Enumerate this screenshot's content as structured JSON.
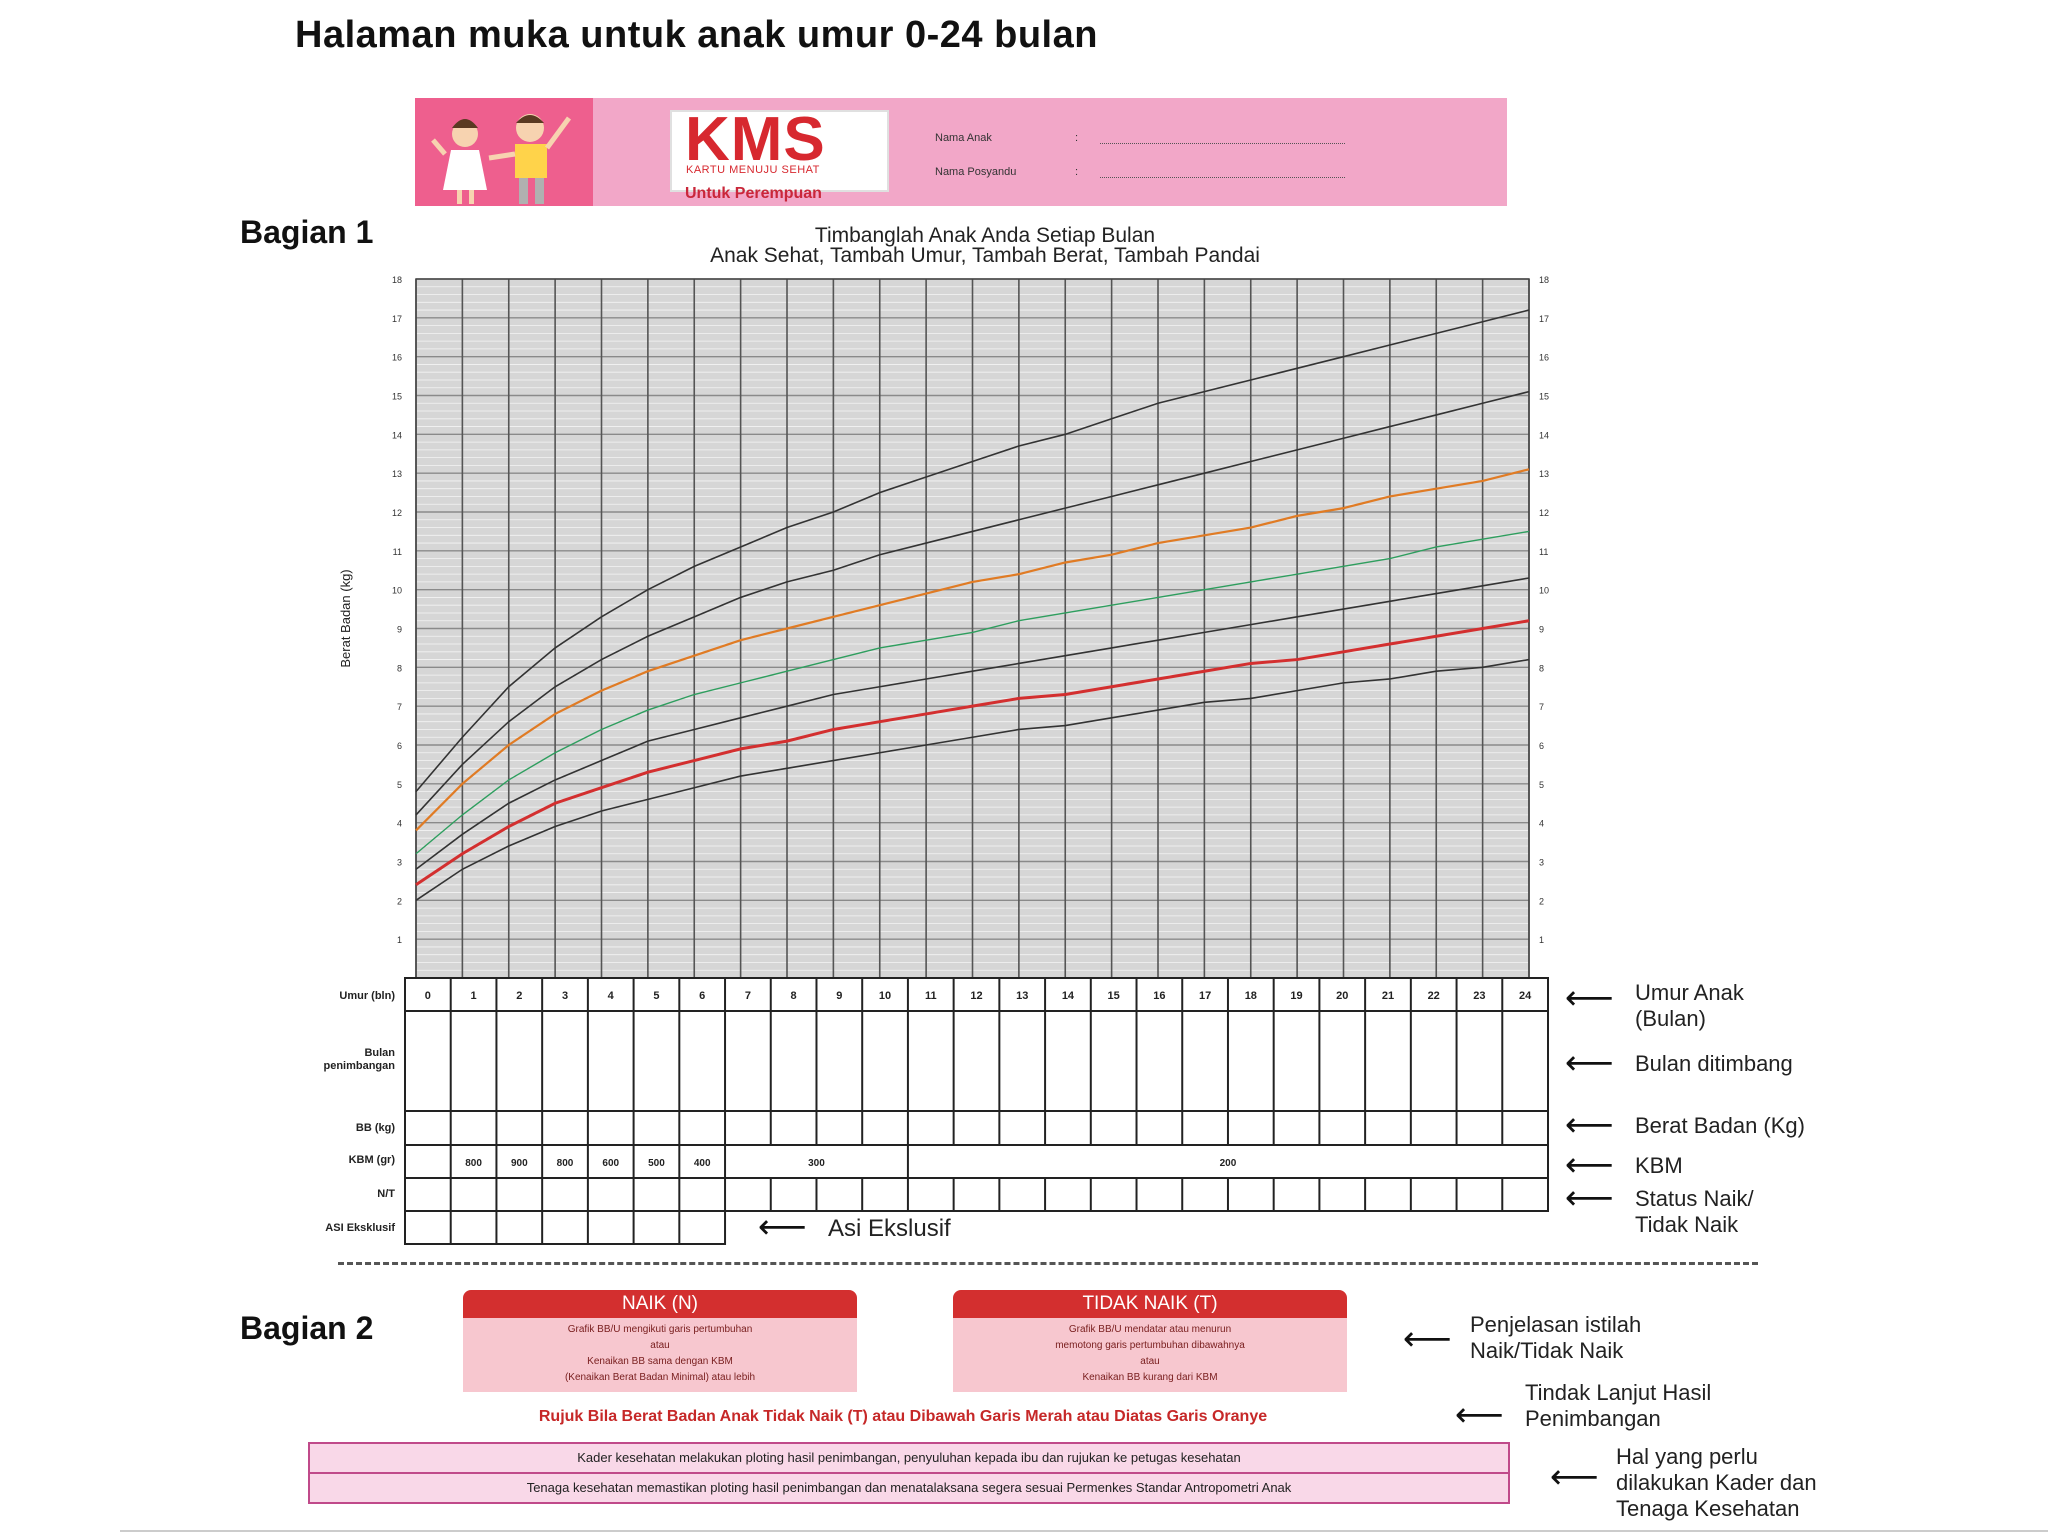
{
  "page_title": "Halaman muka untuk anak umur 0-24 bulan",
  "header": {
    "logo": "KMS",
    "logo_sub": "KARTU MENUJU SEHAT",
    "for_label": "Untuk Perempuan",
    "fields": [
      {
        "label": "Nama Anak",
        "sep": ":"
      },
      {
        "label": "Nama Posyandu",
        "sep": ":"
      }
    ]
  },
  "section1": {
    "label": "Bagian 1",
    "subtitle_line1": "Timbanglah Anak Anda Setiap Bulan",
    "subtitle_line2": "Anak Sehat, Tambah Umur, Tambah Berat, Tambah Pandai"
  },
  "chart_data": {
    "type": "line",
    "ylabel": "Berat Badan (kg)",
    "ylim": [
      0,
      18
    ],
    "xlim": [
      0,
      24
    ],
    "y_ticks": [
      "1",
      "2",
      "3",
      "4",
      "5",
      "6",
      "7",
      "8",
      "9",
      "10",
      "11",
      "12",
      "13",
      "14",
      "15",
      "16",
      "17",
      "18"
    ],
    "grid": true,
    "x": [
      0,
      1,
      2,
      3,
      4,
      5,
      6,
      7,
      8,
      9,
      10,
      11,
      12,
      13,
      14,
      15,
      16,
      17,
      18,
      19,
      20,
      21,
      22,
      23,
      24
    ],
    "series": [
      {
        "color": "#333333",
        "values": [
          4.8,
          6.2,
          7.5,
          8.5,
          9.3,
          10.0,
          10.6,
          11.1,
          11.6,
          12.0,
          12.5,
          12.9,
          13.3,
          13.7,
          14.0,
          14.4,
          14.8,
          15.1,
          15.4,
          15.7,
          16.0,
          16.3,
          16.6,
          16.9,
          17.2
        ]
      },
      {
        "color": "#333333",
        "values": [
          4.2,
          5.5,
          6.6,
          7.5,
          8.2,
          8.8,
          9.3,
          9.8,
          10.2,
          10.5,
          10.9,
          11.2,
          11.5,
          11.8,
          12.1,
          12.4,
          12.7,
          13.0,
          13.3,
          13.6,
          13.9,
          14.2,
          14.5,
          14.8,
          15.1
        ]
      },
      {
        "color": "#e07b24",
        "values": [
          3.8,
          5.0,
          6.0,
          6.8,
          7.4,
          7.9,
          8.3,
          8.7,
          9.0,
          9.3,
          9.6,
          9.9,
          10.2,
          10.4,
          10.7,
          10.9,
          11.2,
          11.4,
          11.6,
          11.9,
          12.1,
          12.4,
          12.6,
          12.8,
          13.1
        ]
      },
      {
        "color": "#2e9e5e",
        "values": [
          3.2,
          4.2,
          5.1,
          5.8,
          6.4,
          6.9,
          7.3,
          7.6,
          7.9,
          8.2,
          8.5,
          8.7,
          8.9,
          9.2,
          9.4,
          9.6,
          9.8,
          10.0,
          10.2,
          10.4,
          10.6,
          10.8,
          11.1,
          11.3,
          11.5
        ]
      },
      {
        "color": "#333333",
        "values": [
          2.8,
          3.7,
          4.5,
          5.1,
          5.6,
          6.1,
          6.4,
          6.7,
          7.0,
          7.3,
          7.5,
          7.7,
          7.9,
          8.1,
          8.3,
          8.5,
          8.7,
          8.9,
          9.1,
          9.3,
          9.5,
          9.7,
          9.9,
          10.1,
          10.3
        ]
      },
      {
        "color": "#d32f2f",
        "values": [
          2.4,
          3.2,
          3.9,
          4.5,
          4.9,
          5.3,
          5.6,
          5.9,
          6.1,
          6.4,
          6.6,
          6.8,
          7.0,
          7.2,
          7.3,
          7.5,
          7.7,
          7.9,
          8.1,
          8.2,
          8.4,
          8.6,
          8.8,
          9.0,
          9.2
        ]
      },
      {
        "color": "#333333",
        "values": [
          2.0,
          2.8,
          3.4,
          3.9,
          4.3,
          4.6,
          4.9,
          5.2,
          5.4,
          5.6,
          5.8,
          6.0,
          6.2,
          6.4,
          6.5,
          6.7,
          6.9,
          7.1,
          7.2,
          7.4,
          7.6,
          7.7,
          7.9,
          8.0,
          8.2
        ]
      }
    ]
  },
  "table": {
    "row_labels": {
      "umur": "Umur (bln)",
      "bulan": "Bulan penimbangan",
      "bb": "BB (kg)",
      "kbm": "KBM (gr)",
      "nt": "N/T",
      "asi": "ASI Eksklusif"
    },
    "months": [
      "0",
      "1",
      "2",
      "3",
      "4",
      "5",
      "6",
      "7",
      "8",
      "9",
      "10",
      "11",
      "12",
      "13",
      "14",
      "15",
      "16",
      "17",
      "18",
      "19",
      "20",
      "21",
      "22",
      "23",
      "24"
    ],
    "kbm_singles": [
      "800",
      "900",
      "800",
      "600",
      "500",
      "400"
    ],
    "kbm_300": "300",
    "kbm_200": "200"
  },
  "annotations": {
    "umur_anak_1": "Umur Anak",
    "umur_anak_2": "(Bulan)",
    "bulan_ditimbang": "Bulan ditimbang",
    "berat_badan": "Berat Badan (Kg)",
    "kbm": "KBM",
    "status_1": "Status Naik/",
    "status_2": "Tidak Naik",
    "asi": "Asi Ekslusif",
    "penjelasan_1": "Penjelasan istilah",
    "penjelasan_2": "Naik/Tidak Naik",
    "tindak_1": "Tindak Lanjut Hasil",
    "tindak_2": "Penimbangan",
    "hal_1": "Hal yang perlu",
    "hal_2": "dilakukan Kader dan",
    "hal_3": "Tenaga Kesehatan"
  },
  "section2": {
    "label": "Bagian 2",
    "naik": {
      "title": "NAIK (N)",
      "line1": "Grafik BB/U mengikuti garis pertumbuhan",
      "line2": "atau",
      "line3": "Kenaikan BB sama dengan KBM",
      "line4": "(Kenaikan Berat Badan Minimal) atau lebih"
    },
    "tidak_naik": {
      "title": "TIDAK NAIK (T)",
      "line1": "Grafik BB/U mendatar atau menurun",
      "line2": "memotong garis pertumbuhan dibawahnya",
      "line3": "atau",
      "line4": "Kenaikan BB kurang dari KBM"
    },
    "refer": "Rujuk Bila Berat Badan Anak Tidak Naik (T) atau Dibawah Garis Merah atau Diatas Garis Oranye",
    "todo_1": "Kader kesehatan melakukan ploting hasil penimbangan, penyuluhan kepada ibu dan rujukan ke petugas kesehatan",
    "todo_2": "Tenaga kesehatan memastikan ploting hasil penimbangan dan menatalaksana segera sesuai Permenkes Standar Antropometri Anak"
  },
  "colors": {
    "pink_band": "#f2a7c8",
    "kids_bg": "#ee5f8e",
    "red_line": "#d32f2f",
    "orange_line": "#e07b24",
    "green_line": "#2e9e5e"
  }
}
